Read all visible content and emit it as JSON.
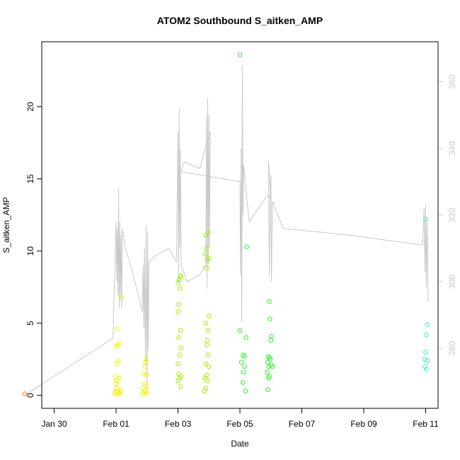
{
  "chart_data": {
    "type": "scatter",
    "title": "ATOM2 Southbound S_aitken_AMP",
    "xlabel": "Date",
    "ylabel": "S_aitken_AMP",
    "x_unit": "days (Feb 01 = 0)",
    "xlim": [
      -2.4,
      10.4
    ],
    "ylim": [
      -0.9,
      24.5
    ],
    "y2lim": [
      262,
      372
    ],
    "x_ticks": [
      {
        "value": -2,
        "label": "Jan 30"
      },
      {
        "value": 0,
        "label": "Feb 01"
      },
      {
        "value": 2,
        "label": "Feb 03"
      },
      {
        "value": 4,
        "label": "Feb 05"
      },
      {
        "value": 6,
        "label": "Feb 07"
      },
      {
        "value": 8,
        "label": "Feb 09"
      },
      {
        "value": 10,
        "label": "Feb 11"
      }
    ],
    "y_ticks": [
      {
        "value": 0,
        "label": "0"
      },
      {
        "value": 5,
        "label": "5"
      },
      {
        "value": 10,
        "label": "10"
      },
      {
        "value": 15,
        "label": "15"
      },
      {
        "value": 20,
        "label": "20"
      }
    ],
    "y2_ticks": [
      {
        "value": 280,
        "label": "280"
      },
      {
        "value": 300,
        "label": "300"
      },
      {
        "value": 320,
        "label": "320"
      },
      {
        "value": 340,
        "label": "340"
      },
      {
        "value": 360,
        "label": "360"
      }
    ],
    "series": [
      {
        "color": "#FF8C00",
        "points": [
          [
            -2.95,
            0.1
          ]
        ]
      },
      {
        "color": "#F2F200",
        "points": [
          [
            0.0,
            0.1
          ],
          [
            0.05,
            0.3
          ],
          [
            0.1,
            0.15
          ],
          [
            0.0,
            0.5
          ],
          [
            0.08,
            0.25
          ],
          [
            0.15,
            0.4
          ],
          [
            -0.05,
            0.2
          ],
          [
            0.12,
            0.1
          ],
          [
            0.02,
            0.8
          ],
          [
            0.0,
            1.0
          ],
          [
            0.1,
            1.2
          ],
          [
            -0.02,
            1.3
          ],
          [
            0.03,
            2.2
          ],
          [
            0.08,
            2.4
          ],
          [
            0.0,
            3.4
          ],
          [
            0.12,
            3.6
          ],
          [
            0.05,
            3.5
          ],
          [
            0.02,
            4.6
          ],
          [
            0.18,
            6.8
          ],
          [
            0.85,
            0.1
          ],
          [
            0.9,
            0.2
          ],
          [
            0.95,
            0.3
          ],
          [
            0.88,
            0.5
          ],
          [
            0.92,
            0.8
          ],
          [
            1.0,
            0.6
          ],
          [
            0.9,
            1.5
          ],
          [
            0.98,
            1.4
          ],
          [
            0.93,
            2.0
          ],
          [
            0.95,
            2.3
          ],
          [
            0.97,
            2.5
          ],
          [
            1.0,
            0.15
          ]
        ]
      },
      {
        "color": "#9BF000",
        "points": [
          [
            2.0,
            1.0
          ],
          [
            2.05,
            1.2
          ],
          [
            2.1,
            1.3
          ],
          [
            2.02,
            1.5
          ],
          [
            2.08,
            0.6
          ],
          [
            2.0,
            2.2
          ],
          [
            2.05,
            2.8
          ],
          [
            2.1,
            3.3
          ],
          [
            2.02,
            4.0
          ],
          [
            2.08,
            4.5
          ],
          [
            2.0,
            5.8
          ],
          [
            2.03,
            6.3
          ],
          [
            2.06,
            7.4
          ],
          [
            2.0,
            7.8
          ],
          [
            2.04,
            8.0
          ],
          [
            2.08,
            8.3
          ],
          [
            2.1,
            8.2
          ],
          [
            2.85,
            0.3
          ],
          [
            2.9,
            0.5
          ],
          [
            2.95,
            1.0
          ],
          [
            2.88,
            1.2
          ],
          [
            2.92,
            1.4
          ],
          [
            3.0,
            2.0
          ],
          [
            2.9,
            2.2
          ],
          [
            2.98,
            2.8
          ],
          [
            2.93,
            3.5
          ],
          [
            2.95,
            3.8
          ],
          [
            2.97,
            4.5
          ],
          [
            2.9,
            5.0
          ],
          [
            3.0,
            5.5
          ],
          [
            2.93,
            8.8
          ],
          [
            2.95,
            9.4
          ],
          [
            3.0,
            9.5
          ],
          [
            2.88,
            9.8
          ],
          [
            2.92,
            10.2
          ],
          [
            2.9,
            11.1
          ],
          [
            2.98,
            11.3
          ]
        ]
      },
      {
        "color": "#33EE33",
        "points": [
          [
            4.0,
            23.6
          ],
          [
            4.0,
            4.5
          ],
          [
            4.05,
            2.3
          ],
          [
            4.1,
            0.9
          ],
          [
            4.12,
            1.6
          ],
          [
            4.15,
            2.0
          ],
          [
            4.1,
            2.8
          ],
          [
            4.15,
            2.7
          ],
          [
            4.18,
            0.3
          ],
          [
            4.2,
            4.0
          ],
          [
            4.22,
            10.3
          ],
          [
            4.9,
            0.4
          ],
          [
            4.92,
            1.2
          ],
          [
            4.95,
            1.3
          ],
          [
            4.88,
            1.6
          ],
          [
            4.93,
            2.0
          ],
          [
            5.0,
            2.1
          ],
          [
            4.9,
            2.3
          ],
          [
            4.98,
            2.5
          ],
          [
            4.95,
            2.6
          ],
          [
            4.92,
            2.7
          ],
          [
            5.0,
            3.8
          ],
          [
            5.02,
            4.1
          ],
          [
            4.95,
            6.5
          ],
          [
            4.97,
            5.3
          ],
          [
            5.05,
            2.0
          ]
        ]
      },
      {
        "color": "#33F0C0",
        "points": [
          [
            10.0,
            12.2
          ],
          [
            9.98,
            2.0
          ],
          [
            10.02,
            1.8
          ],
          [
            10.05,
            2.4
          ],
          [
            9.96,
            2.5
          ],
          [
            10.0,
            3.0
          ],
          [
            10.02,
            4.2
          ],
          [
            10.05,
            4.9
          ]
        ]
      }
    ],
    "gray_line": {
      "color": "#c8c8c8",
      "axis": "right",
      "points": [
        [
          -2.95,
          266
        ],
        [
          -0.1,
          283
        ],
        [
          0.0,
          318
        ],
        [
          0.02,
          300
        ],
        [
          0.04,
          316
        ],
        [
          0.06,
          296
        ],
        [
          0.08,
          328
        ],
        [
          0.1,
          292
        ],
        [
          0.12,
          318
        ],
        [
          0.14,
          295
        ],
        [
          0.16,
          314
        ],
        [
          0.18,
          292
        ],
        [
          0.2,
          316
        ],
        [
          0.3,
          310
        ],
        [
          0.5,
          304
        ],
        [
          0.85,
          291
        ],
        [
          0.87,
          305
        ],
        [
          0.9,
          286
        ],
        [
          0.92,
          310
        ],
        [
          0.95,
          275
        ],
        [
          0.97,
          317
        ],
        [
          1.0,
          268
        ],
        [
          1.02,
          315
        ],
        [
          1.04,
          280
        ],
        [
          1.06,
          306
        ],
        [
          1.3,
          308
        ],
        [
          1.7,
          310
        ],
        [
          1.95,
          306
        ],
        [
          2.0,
          345
        ],
        [
          2.02,
          300
        ],
        [
          2.04,
          352
        ],
        [
          2.06,
          310
        ],
        [
          2.08,
          340
        ],
        [
          2.1,
          305
        ],
        [
          2.3,
          300
        ],
        [
          2.7,
          302
        ],
        [
          2.9,
          305
        ],
        [
          2.92,
          350
        ],
        [
          2.94,
          298
        ],
        [
          2.96,
          355
        ],
        [
          2.98,
          305
        ],
        [
          3.0,
          350
        ],
        [
          3.02,
          310
        ],
        [
          3.04,
          345
        ],
        [
          2.7,
          334
        ],
        [
          2.2,
          336
        ],
        [
          2.1,
          333
        ],
        [
          4.0,
          330
        ],
        [
          4.02,
          302
        ],
        [
          4.04,
          340
        ],
        [
          4.06,
          288
        ],
        [
          4.08,
          365
        ],
        [
          4.1,
          320
        ],
        [
          4.12,
          335
        ],
        [
          4.3,
          318
        ],
        [
          4.9,
          326
        ],
        [
          5.0,
          325
        ],
        [
          4.92,
          336
        ],
        [
          4.95,
          302
        ],
        [
          4.98,
          328
        ],
        [
          5.0,
          332
        ],
        [
          5.02,
          300
        ],
        [
          5.05,
          324
        ],
        [
          5.4,
          316
        ],
        [
          7.5,
          314
        ],
        [
          9.9,
          311
        ],
        [
          9.95,
          322
        ],
        [
          9.98,
          303
        ],
        [
          10.0,
          323
        ],
        [
          10.02,
          298
        ],
        [
          10.05,
          318
        ],
        [
          10.08,
          294
        ]
      ]
    }
  }
}
